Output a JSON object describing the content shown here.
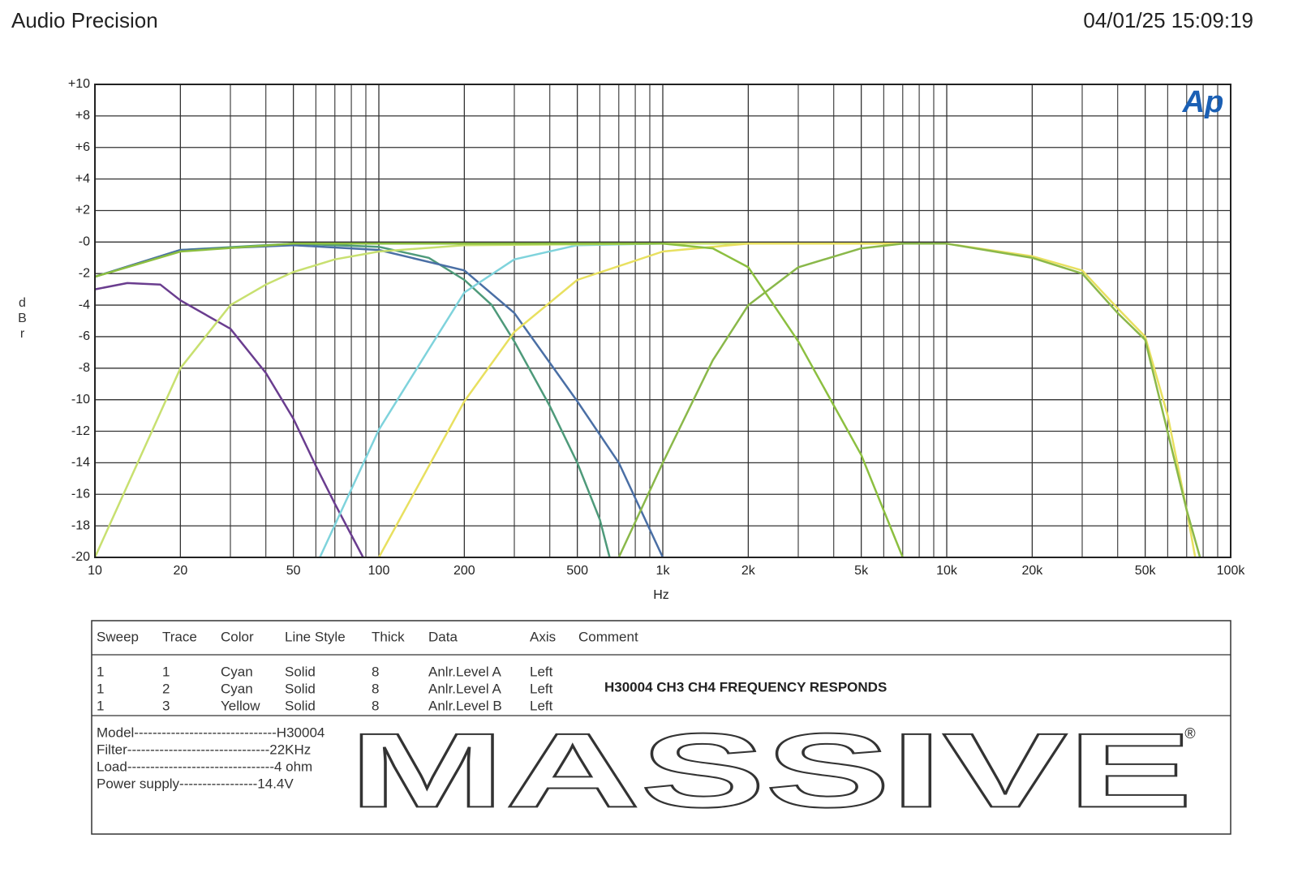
{
  "header": {
    "title": "Audio Precision",
    "timestamp": "04/01/25 15:09:19"
  },
  "chart_data": {
    "type": "line",
    "logo": "Ap",
    "xlabel": "Hz",
    "ylabel": "dBr",
    "xlog": true,
    "grid": true,
    "xlim": [
      10,
      100000
    ],
    "ylim": [
      -20,
      10
    ],
    "xticks": [
      10,
      20,
      50,
      100,
      200,
      500,
      {
        "value": 1000,
        "label": "1k"
      },
      {
        "value": 2000,
        "label": "2k"
      },
      {
        "value": 5000,
        "label": "5k"
      },
      {
        "value": 10000,
        "label": "10k"
      },
      {
        "value": 20000,
        "label": "20k"
      },
      {
        "value": 50000,
        "label": "50k"
      },
      {
        "value": 100000,
        "label": "100k"
      }
    ],
    "xminor": [
      30,
      40,
      60,
      70,
      80,
      90,
      300,
      400,
      600,
      700,
      800,
      900,
      3000,
      4000,
      6000,
      7000,
      8000,
      9000,
      30000,
      40000,
      60000,
      70000,
      80000,
      90000
    ],
    "yticks": [
      {
        "value": 10,
        "label": "+10"
      },
      {
        "value": 8,
        "label": "+8"
      },
      {
        "value": 6,
        "label": "+6"
      },
      {
        "value": 4,
        "label": "+4"
      },
      {
        "value": 2,
        "label": "+2"
      },
      {
        "value": 0,
        "label": "-0"
      },
      -2,
      -4,
      -6,
      -8,
      -10,
      -12,
      -14,
      -16,
      -18,
      -20
    ],
    "series": [
      {
        "color": "#6a3d8f",
        "x": [
          10,
          13,
          17,
          20,
          30,
          40,
          50,
          60,
          70,
          88
        ],
        "values": [
          -3,
          -2.6,
          -2.7,
          -3.7,
          -5.5,
          -8.3,
          -11.2,
          -14.2,
          -16.6,
          -20
        ]
      },
      {
        "color": "#4e9a7a",
        "x": [
          10,
          20,
          50,
          100,
          150,
          200,
          250,
          300,
          400,
          500,
          600,
          650
        ],
        "values": [
          -2.2,
          -0.5,
          -0.1,
          -0.3,
          -1,
          -2.4,
          -4,
          -6.3,
          -10.4,
          -14,
          -17.6,
          -20
        ]
      },
      {
        "color": "#4a6fa5",
        "x": [
          10,
          20,
          50,
          100,
          200,
          300,
          500,
          700,
          1000
        ],
        "values": [
          -2.2,
          -0.5,
          -0.2,
          -0.5,
          -1.8,
          -4.5,
          -10.1,
          -14,
          -20
        ]
      },
      {
        "color": "#7fd3dc",
        "x": [
          62,
          100,
          150,
          200,
          300,
          500,
          1000,
          10000
        ],
        "values": [
          -20,
          -11.9,
          -6.8,
          -3.2,
          -1.1,
          -0.2,
          -0.1,
          -0.1
        ]
      },
      {
        "color": "#c8e070",
        "x": [
          10,
          20,
          30,
          40,
          50,
          70,
          100,
          200,
          1000,
          10000
        ],
        "values": [
          -20,
          -8,
          -4,
          -2.7,
          -1.9,
          -1.1,
          -0.6,
          -0.2,
          -0.1,
          -0.1
        ]
      },
      {
        "color": "#e8e060",
        "x": [
          100,
          200,
          300,
          500,
          1000,
          1500,
          2000,
          10000,
          20000,
          30000,
          40000,
          50000,
          60000,
          70000,
          75000
        ],
        "values": [
          -20,
          -10.1,
          -5.7,
          -2.4,
          -0.6,
          -0.3,
          -0.1,
          -0.1,
          -0.9,
          -1.8,
          -4.2,
          -6,
          -11,
          -17,
          -20
        ]
      },
      {
        "color": "#8ab84a",
        "x": [
          700,
          1000,
          1500,
          2000,
          3000,
          5000,
          7000,
          10000,
          20000,
          30000,
          40000,
          50000,
          70000,
          78000
        ],
        "values": [
          -20,
          -14,
          -7.5,
          -4,
          -1.6,
          -0.4,
          -0.1,
          -0.1,
          -1,
          -2,
          -4.5,
          -6.2,
          -17,
          -20
        ]
      },
      {
        "color": "#8cbf40",
        "x": [
          10,
          20,
          50,
          100,
          1000,
          1500,
          2000,
          3000,
          5000,
          7000
        ],
        "values": [
          -2.2,
          -0.6,
          -0.1,
          -0.1,
          -0.1,
          -0.4,
          -1.6,
          -6.3,
          -13.5,
          -20
        ]
      }
    ]
  },
  "legend_table": {
    "columns": [
      "Sweep",
      "Trace",
      "Color",
      "Line Style",
      "Thick",
      "Data",
      "Axis",
      "Comment"
    ],
    "rows": [
      [
        "1",
        "1",
        "Cyan",
        "Solid",
        "8",
        "Anlr.Level A",
        "Left"
      ],
      [
        "1",
        "2",
        "Cyan",
        "Solid",
        "8",
        "Anlr.Level A",
        "Left"
      ],
      [
        "1",
        "3",
        "Yellow",
        "Solid",
        "8",
        "Anlr.Level B",
        "Left"
      ]
    ],
    "comment": "H30004 CH3 CH4 FREQUENCY RESPONDS"
  },
  "specs": [
    "Model-------------------------------H30004",
    "Filter-------------------------------22KHz",
    "Load--------------------------------4 ohm",
    "Power supply-----------------14.4V"
  ],
  "brand": {
    "logo": "MASSIVE",
    "registered": "®"
  }
}
